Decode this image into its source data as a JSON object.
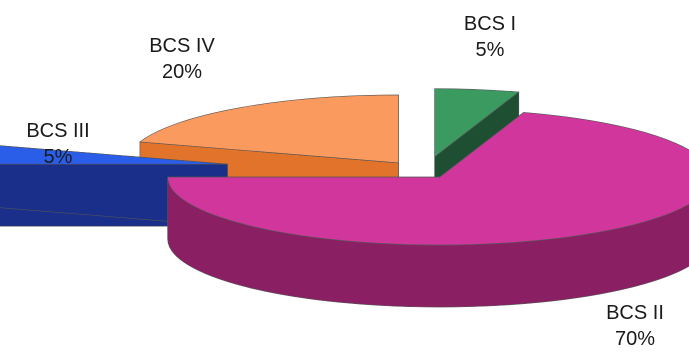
{
  "chart_data": {
    "type": "pie",
    "style": "3d-exploded",
    "categories": [
      "BCS I",
      "BCS II",
      "BCS III",
      "BCS IV"
    ],
    "values": [
      5,
      70,
      5,
      20
    ],
    "value_labels": [
      "5%",
      "70%",
      "5%",
      "20%"
    ],
    "colors": [
      "#3a9a5f",
      "#d0369c",
      "#2a5ee8",
      "#fb9a5e"
    ],
    "side_colors": [
      "#1f4f33",
      "#8a1f63",
      "#1a2f8a",
      "#e2732a"
    ],
    "title": "",
    "legend": "none"
  }
}
